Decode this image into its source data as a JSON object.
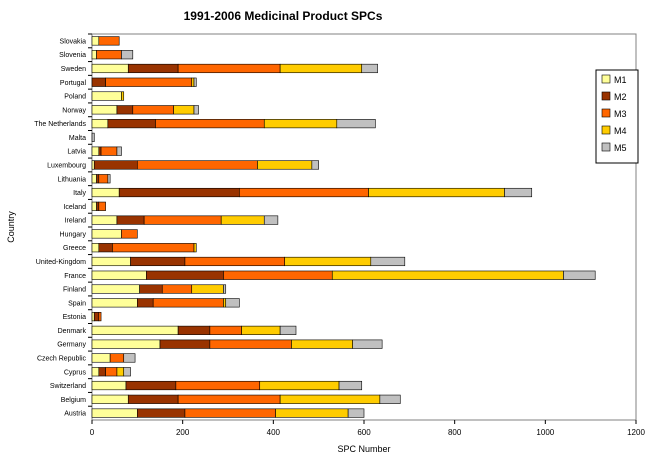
{
  "chart_data": {
    "type": "bar",
    "orientation": "horizontal",
    "stacked": true,
    "title": "1991-2006 Medicinal Product SPCs",
    "xlabel": "SPC Number",
    "ylabel": "Country",
    "xlim": [
      0,
      1200
    ],
    "xticks": [
      0,
      200,
      400,
      600,
      800,
      1000,
      1200
    ],
    "legend_position": "right",
    "categories": [
      "Slovakia",
      "Slovenia",
      "Sweden",
      "Portugal",
      "Poland",
      "Norway",
      "The Netherlands",
      "Malta",
      "Latvia",
      "Luxembourg",
      "Lithuania",
      "Italy",
      "Iceland",
      "Ireland",
      "Hungary",
      "Greece",
      "United-Kingdom",
      "France",
      "Finland",
      "Spain",
      "Estonia",
      "Denmark",
      "Germany",
      "Czech Republic",
      "Cyprus",
      "Switzerland",
      "Belgium",
      "Austria"
    ],
    "series": [
      {
        "name": "M1",
        "color": "#FFFF99",
        "values": [
          15,
          10,
          80,
          0,
          65,
          55,
          35,
          0,
          15,
          5,
          10,
          60,
          10,
          55,
          65,
          15,
          85,
          120,
          105,
          100,
          5,
          190,
          150,
          40,
          15,
          75,
          80,
          100
        ]
      },
      {
        "name": "M2",
        "color": "#993300",
        "values": [
          0,
          0,
          110,
          30,
          0,
          35,
          105,
          0,
          5,
          95,
          5,
          265,
          5,
          60,
          0,
          30,
          120,
          170,
          50,
          35,
          10,
          70,
          110,
          0,
          15,
          110,
          110,
          105
        ]
      },
      {
        "name": "M3",
        "color": "#FF6600",
        "values": [
          45,
          55,
          225,
          190,
          0,
          90,
          240,
          0,
          35,
          265,
          20,
          285,
          15,
          170,
          35,
          180,
          220,
          240,
          65,
          155,
          5,
          70,
          180,
          30,
          25,
          185,
          225,
          200
        ]
      },
      {
        "name": "M4",
        "color": "#FFCC00",
        "values": [
          0,
          0,
          180,
          5,
          5,
          45,
          160,
          0,
          0,
          120,
          0,
          300,
          0,
          95,
          0,
          5,
          190,
          510,
          70,
          5,
          0,
          85,
          135,
          0,
          15,
          175,
          220,
          160
        ]
      },
      {
        "name": "M5",
        "color": "#C0C0C0",
        "values": [
          0,
          25,
          35,
          5,
          0,
          10,
          85,
          5,
          10,
          15,
          5,
          60,
          0,
          30,
          0,
          0,
          75,
          70,
          5,
          30,
          0,
          35,
          65,
          25,
          15,
          50,
          45,
          35
        ]
      }
    ]
  }
}
